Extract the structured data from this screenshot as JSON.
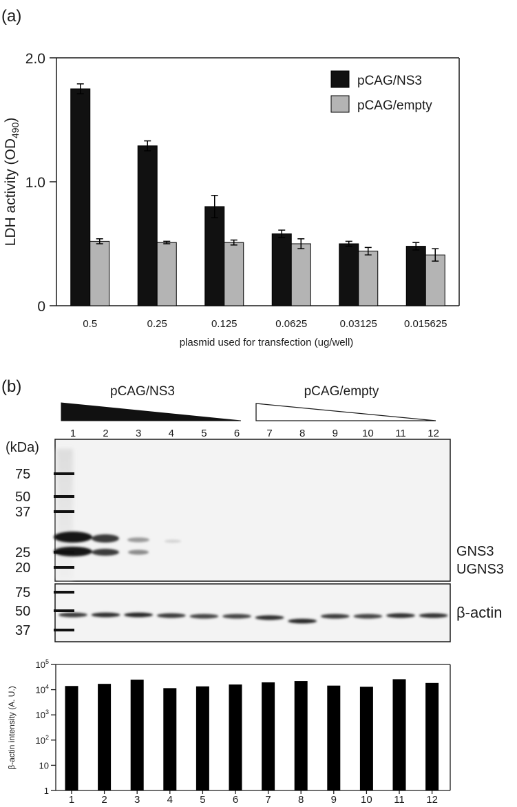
{
  "panel_a": {
    "panel_label": "(a)",
    "ylabel_main": "LDH activity (OD",
    "ylabel_sub": "490",
    "ylabel_close": ")",
    "xlabel": "plasmid used for transfection (ug/well)",
    "legend": [
      "pCAG/NS3",
      "pCAG/empty"
    ],
    "ytick_labels": [
      "0",
      "1.0",
      "2.0"
    ]
  },
  "panel_b": {
    "panel_label": "(b)",
    "group_labels": [
      "pCAG/NS3",
      "pCAG/empty"
    ],
    "lane_labels": [
      "1",
      "2",
      "3",
      "4",
      "5",
      "6",
      "7",
      "8",
      "9",
      "10",
      "11",
      "12"
    ],
    "kda_label": "(kDa)",
    "blot1_markers": [
      "75",
      "50",
      "37",
      "25",
      "20"
    ],
    "blot2_markers": [
      "75",
      "50",
      "37"
    ],
    "band_labels": [
      "GNS3",
      "UGNS3"
    ],
    "actin_label": "β-actin",
    "bar_ylabel": "β-actin intensity (A. U.)",
    "bar_ytick_labels": [
      {
        "base": "1",
        "exp": ""
      },
      {
        "base": "10",
        "exp": ""
      },
      {
        "base": "10",
        "exp": "2"
      },
      {
        "base": "10",
        "exp": "3"
      },
      {
        "base": "10",
        "exp": "4"
      },
      {
        "base": "10",
        "exp": "5"
      }
    ]
  },
  "chart_data": [
    {
      "type": "bar",
      "categories": [
        "0.5",
        "0.25",
        "0.125",
        "0.0625",
        "0.03125",
        "0.015625"
      ],
      "series": [
        {
          "name": "pCAG/NS3",
          "color": "#111111",
          "values": [
            1.75,
            1.29,
            0.8,
            0.58,
            0.5,
            0.48
          ],
          "errors": [
            0.04,
            0.04,
            0.09,
            0.03,
            0.02,
            0.03
          ]
        },
        {
          "name": "pCAG/empty",
          "color": "#b4b4b4",
          "values": [
            0.52,
            0.51,
            0.51,
            0.5,
            0.44,
            0.41
          ],
          "errors": [
            0.02,
            0.01,
            0.02,
            0.04,
            0.03,
            0.05
          ]
        }
      ],
      "ylim": [
        0,
        2.0
      ],
      "yticks": [
        0,
        1.0,
        2.0
      ],
      "xlabel": "plasmid used for transfection (ug/well)",
      "ylabel": "LDH activity (OD490)",
      "legend_position": "top-right",
      "grid": false
    },
    {
      "type": "bar",
      "categories": [
        "1",
        "2",
        "3",
        "4",
        "5",
        "6",
        "7",
        "8",
        "9",
        "10",
        "11",
        "12"
      ],
      "values": [
        14000,
        17000,
        25000,
        11500,
        13500,
        16000,
        19500,
        22000,
        14500,
        13000,
        26000,
        18500
      ],
      "ylim": [
        1,
        100000
      ],
      "yscale": "log",
      "ylabel": "β-actin intensity (A. U.)",
      "color": "#000000",
      "grid": false
    }
  ]
}
